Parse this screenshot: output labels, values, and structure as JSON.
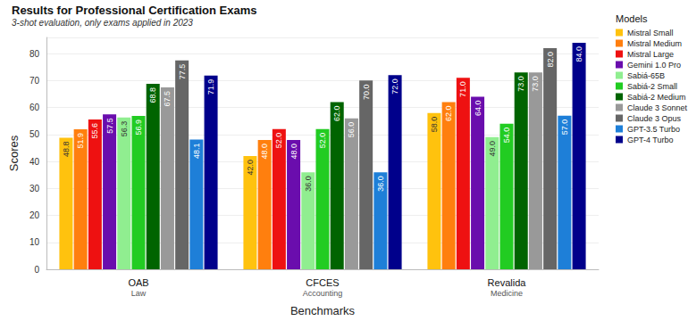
{
  "chart_data": {
    "type": "bar",
    "title": "Results for Professional Certification Exams",
    "subtitle": "3-shot evaluation, only exams applied in 2023",
    "x_label": "Benchmarks",
    "y_label": "Scores",
    "legend_title": "Models",
    "categories": [
      "OAB\nLaw",
      "CFCES\nAccounting",
      "Revalida\nMedicine"
    ],
    "series": [
      {
        "name": "Mistral Small",
        "color": "#FFC20E",
        "values": [
          48.8,
          42.0,
          58.0
        ],
        "value_labels": [
          "48.8",
          "42.0",
          "58.0"
        ]
      },
      {
        "name": "Mistral Medium",
        "color": "#FF7F0E",
        "values": [
          51.9,
          48.0,
          62.0
        ],
        "value_labels": [
          "51.9",
          "48.0",
          "62.0"
        ]
      },
      {
        "name": "Mistral Large",
        "color": "#EE1111",
        "values": [
          55.6,
          52.0,
          71.0
        ],
        "value_labels": [
          "55.6",
          "52.0",
          "71.0"
        ]
      },
      {
        "name": "Gemini 1.0 Pro",
        "color": "#6A0DAD",
        "values": [
          57.5,
          48.0,
          64.0
        ],
        "value_labels": [
          "57.5",
          "48.0",
          "64.0"
        ]
      },
      {
        "name": "Sabiá-65B",
        "color": "#90EE90",
        "values": [
          56.3,
          36.0,
          49.0
        ],
        "value_labels": [
          "56.3",
          "36.0",
          "49.0"
        ]
      },
      {
        "name": "Sabiá-2 Small",
        "color": "#22CC22",
        "values": [
          56.9,
          52.0,
          54.0
        ],
        "value_labels": [
          "56.9",
          "52.0",
          "54.0"
        ]
      },
      {
        "name": "Sabiá-2 Medium",
        "color": "#006400",
        "values": [
          68.8,
          62.0,
          73.0
        ],
        "value_labels": [
          "68.8",
          "62.0",
          "73.0"
        ]
      },
      {
        "name": "Claude 3 Sonnet",
        "color": "#999999",
        "values": [
          67.5,
          56.0,
          73.0
        ],
        "value_labels": [
          "67.5",
          "56.0",
          "73.0"
        ]
      },
      {
        "name": "Claude 3 Opus",
        "color": "#666666",
        "values": [
          77.5,
          70.0,
          82.0
        ],
        "value_labels": [
          "77.5",
          "70.0",
          "82.0"
        ]
      },
      {
        "name": "GPT-3.5 Turbo",
        "color": "#1E7FD8",
        "values": [
          48.1,
          36.0,
          57.0
        ],
        "value_labels": [
          "48.1",
          "36.0",
          "57.0"
        ]
      },
      {
        "name": "GPT-4 Turbo",
        "color": "#00008B",
        "values": [
          71.9,
          72.0,
          84.0
        ],
        "value_labels": [
          "71.9",
          "72.0",
          "84.0"
        ]
      }
    ],
    "ylim": [
      0,
      86
    ],
    "yticks": [
      0,
      10,
      20,
      30,
      40,
      50,
      60,
      70,
      80
    ],
    "grid": true,
    "legend": "right",
    "data_labels": true
  }
}
